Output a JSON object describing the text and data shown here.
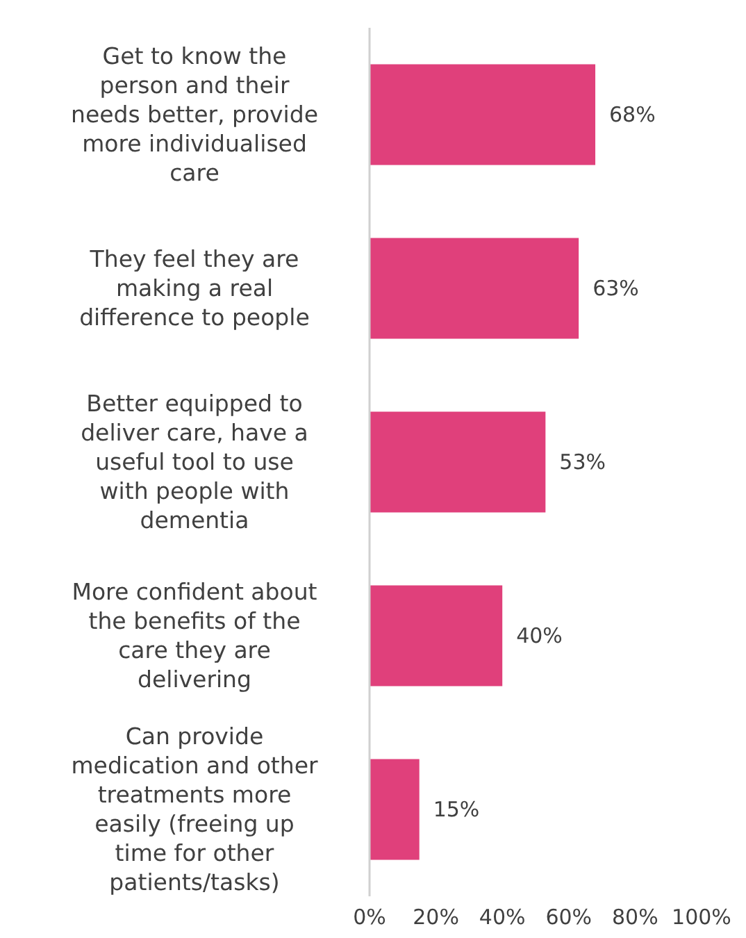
{
  "chart_data": {
    "type": "bar",
    "orientation": "horizontal",
    "categories": [
      "Get to know the person and their needs better, provide more individualised care",
      "They feel they are making a real difference to people",
      "Better equipped to deliver care, have a useful tool to use with people with dementia",
      "More confident about the benefits of the care they are delivering",
      "Can provide medication and other treatments more easily (freeing up time for other patients/tasks)"
    ],
    "values": [
      68,
      63,
      53,
      40,
      15
    ],
    "value_labels": [
      "68%",
      "63%",
      "53%",
      "40%",
      "15%"
    ],
    "color": "#e0407b",
    "xlim": [
      0,
      100
    ],
    "xticks": [
      {
        "value": 0,
        "label": "0%"
      },
      {
        "value": 20,
        "label": "20%"
      },
      {
        "value": 40,
        "label": "40%"
      },
      {
        "value": 60,
        "label": "60%"
      },
      {
        "value": 80,
        "label": "80%"
      },
      {
        "value": 100,
        "label": "100%"
      }
    ],
    "grid": false
  }
}
